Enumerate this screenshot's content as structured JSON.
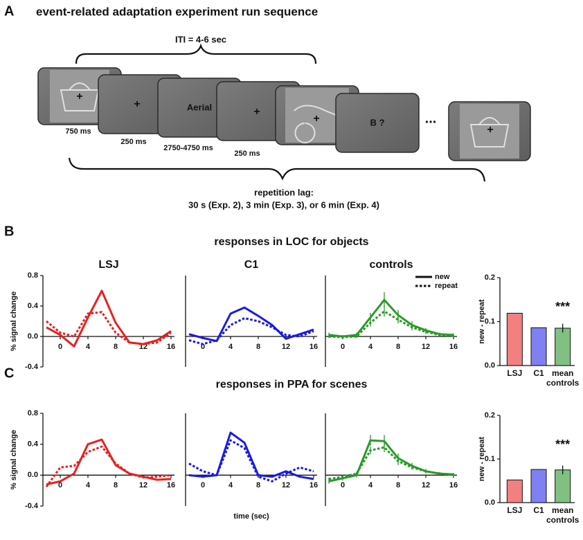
{
  "panel_labels": [
    "A",
    "B",
    "C"
  ],
  "diagram": {
    "title": "event-related adaptation experiment run sequence",
    "iti": "ITI = 4-6 sec",
    "frames": [
      {
        "text": "+",
        "duration": "750 ms"
      },
      {
        "text": "+",
        "duration": "250 ms"
      },
      {
        "text": "Aerial",
        "duration": "2750-4750 ms"
      },
      {
        "text": "+",
        "duration": "250 ms"
      },
      {
        "text": "+"
      },
      {
        "text": "B ?"
      },
      {
        "text": "+"
      }
    ],
    "ellipsis": "...",
    "lag_title": "repetition lag:",
    "lag_detail": "30 s (Exp. 2),  3 min (Exp. 3), or 6 min (Exp. 4)"
  },
  "section_titles": [
    "responses in LOC for objects",
    "responses in PPA for scenes"
  ],
  "chart_data": [
    {
      "type": "line",
      "title": "LSJ",
      "y_label": "% signal change",
      "x": [
        -2,
        0,
        2,
        4,
        6,
        8,
        10,
        12,
        14,
        16
      ],
      "xlim": [
        -2.5,
        16.5
      ],
      "xticks": [
        0,
        4,
        8,
        12,
        16
      ],
      "ylim": [
        -0.4,
        0.8
      ],
      "yticks": [
        -0.4,
        {
          "value": 0,
          "label": "0.0"
        },
        0.4,
        0.8
      ],
      "series": [
        {
          "style": "solid",
          "color": "#e8201f",
          "values": [
            0.12,
            0.02,
            -0.13,
            0.25,
            0.6,
            0.18,
            -0.08,
            -0.1,
            -0.05,
            0.07
          ]
        },
        {
          "style": "dashed",
          "color": "#e8201f",
          "values": [
            0.2,
            0.05,
            0.0,
            0.3,
            0.32,
            0.05,
            -0.08,
            -0.1,
            -0.08,
            0.05
          ]
        }
      ]
    },
    {
      "type": "line",
      "title": "C1",
      "x": [
        -2,
        0,
        2,
        4,
        6,
        8,
        10,
        12,
        14,
        16
      ],
      "xlim": [
        -2.5,
        16.5
      ],
      "xticks": [
        0,
        4,
        8,
        12,
        16
      ],
      "ylim": [
        -0.4,
        0.8
      ],
      "series": [
        {
          "style": "solid",
          "color": "#1a1ae6",
          "values": [
            0.03,
            -0.02,
            -0.06,
            0.3,
            0.38,
            0.27,
            0.15,
            -0.03,
            0.03,
            0.09
          ]
        },
        {
          "style": "dashed",
          "color": "#1a1ae6",
          "values": [
            -0.05,
            -0.1,
            -0.05,
            0.15,
            0.24,
            0.2,
            0.12,
            0.02,
            0.0,
            0.07
          ]
        }
      ]
    },
    {
      "type": "line",
      "title": "controls",
      "legend": "upper right",
      "x": [
        -2,
        0,
        2,
        4,
        6,
        8,
        10,
        12,
        14,
        16
      ],
      "xlim": [
        -2.5,
        16.5
      ],
      "xticks": [
        0,
        4,
        8,
        12,
        16
      ],
      "ylim": [
        -0.4,
        0.8
      ],
      "series": [
        {
          "name": "new",
          "style": "solid",
          "color": "#2a9a2a",
          "values": [
            0.02,
            0.0,
            0.02,
            0.25,
            0.48,
            0.28,
            0.15,
            0.08,
            0.03,
            0.02
          ],
          "errors": [
            0.03,
            0.02,
            0.03,
            0.06,
            0.1,
            0.07,
            0.05,
            0.03,
            0.02,
            0.02
          ]
        },
        {
          "name": "repeat",
          "style": "dashed",
          "color": "#2a9a2a",
          "values": [
            0.0,
            -0.01,
            0.0,
            0.18,
            0.33,
            0.22,
            0.12,
            0.06,
            0.02,
            0.01
          ],
          "errors": [
            0.02,
            0.02,
            0.02,
            0.05,
            0.07,
            0.05,
            0.04,
            0.03,
            0.02,
            0.02
          ]
        }
      ]
    },
    {
      "type": "bar",
      "y_label": "new - repeat",
      "annotation": "***",
      "categories": [
        "LSJ",
        "C1",
        "mean controls"
      ],
      "values": [
        0.119,
        0.086,
        0.085
      ],
      "errors": [
        null,
        null,
        0.01
      ],
      "colors": [
        "#f28080",
        "#8080f2",
        "#80c080"
      ],
      "ylim": [
        0,
        0.2
      ],
      "yticks": [
        {
          "value": 0,
          "label": "0.0"
        },
        0.1,
        0.2
      ]
    },
    {
      "type": "line",
      "y_label": "% signal change",
      "x": [
        -2,
        0,
        2,
        4,
        6,
        8,
        10,
        12,
        14,
        16
      ],
      "xlim": [
        -2.5,
        16.5
      ],
      "xticks": [
        0,
        4,
        8,
        12,
        16
      ],
      "ylim": [
        -0.4,
        0.8
      ],
      "yticks": [
        -0.4,
        {
          "value": 0,
          "label": "0.0"
        },
        0.4,
        0.8
      ],
      "series": [
        {
          "style": "solid",
          "color": "#e8201f",
          "values": [
            -0.12,
            -0.08,
            0.02,
            0.4,
            0.46,
            0.13,
            0.02,
            -0.02,
            -0.06,
            -0.05
          ]
        },
        {
          "style": "dashed",
          "color": "#e8201f",
          "values": [
            -0.15,
            0.1,
            0.12,
            0.3,
            0.37,
            0.15,
            0.02,
            -0.03,
            -0.02,
            0.0
          ]
        }
      ]
    },
    {
      "type": "line",
      "x_label": "time (sec)",
      "x": [
        -2,
        0,
        2,
        4,
        6,
        8,
        10,
        12,
        14,
        16
      ],
      "xlim": [
        -2.5,
        16.5
      ],
      "xticks": [
        0,
        4,
        8,
        12,
        16
      ],
      "ylim": [
        -0.4,
        0.8
      ],
      "series": [
        {
          "style": "solid",
          "color": "#1a1ae6",
          "values": [
            0.0,
            -0.02,
            0.0,
            0.55,
            0.42,
            0.0,
            -0.02,
            0.05,
            -0.02,
            -0.05
          ]
        },
        {
          "style": "dashed",
          "color": "#1a1ae6",
          "values": [
            0.15,
            0.05,
            0.0,
            0.45,
            0.35,
            -0.02,
            -0.08,
            0.02,
            0.1,
            0.05
          ]
        }
      ]
    },
    {
      "type": "line",
      "x": [
        -2,
        0,
        2,
        4,
        6,
        8,
        10,
        12,
        14,
        16
      ],
      "xlim": [
        -2.5,
        16.5
      ],
      "xticks": [
        0,
        4,
        8,
        12,
        16
      ],
      "ylim": [
        -0.4,
        0.8
      ],
      "series": [
        {
          "style": "solid",
          "color": "#2a9a2a",
          "values": [
            -0.08,
            -0.04,
            0.0,
            0.45,
            0.44,
            0.22,
            0.12,
            0.05,
            0.02,
            0.01
          ],
          "errors": [
            0.03,
            0.03,
            0.03,
            0.07,
            0.08,
            0.06,
            0.04,
            0.03,
            0.02,
            0.02
          ]
        },
        {
          "style": "dashed",
          "color": "#2a9a2a",
          "values": [
            -0.05,
            -0.02,
            0.02,
            0.32,
            0.36,
            0.18,
            0.1,
            0.05,
            0.02,
            0.0
          ],
          "errors": [
            0.02,
            0.02,
            0.02,
            0.05,
            0.06,
            0.05,
            0.03,
            0.02,
            0.02,
            0.02
          ]
        }
      ]
    },
    {
      "type": "bar",
      "y_label": "new - repeat",
      "annotation": "***",
      "categories": [
        "LSJ",
        "C1",
        "mean controls"
      ],
      "values": [
        0.052,
        0.076,
        0.075
      ],
      "errors": [
        null,
        null,
        0.01
      ],
      "colors": [
        "#f28080",
        "#8080f2",
        "#80c080"
      ],
      "ylim": [
        0,
        0.2
      ],
      "yticks": [
        {
          "value": 0,
          "label": "0.0"
        },
        0.1,
        0.2
      ]
    }
  ]
}
